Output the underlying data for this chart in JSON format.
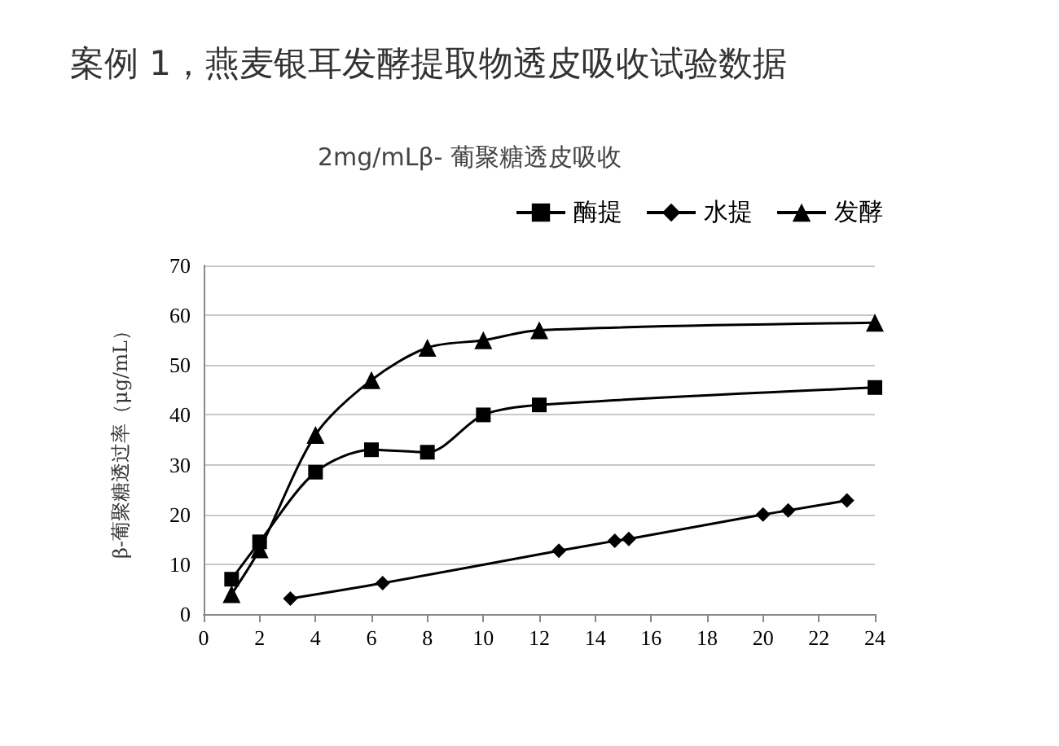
{
  "chart_data": {
    "type": "line",
    "title": "案例 1，燕麦银耳发酵提取物透皮吸收试验数据",
    "subtitle": "2mg/mLβ- 葡聚糖透皮吸收",
    "ylabel": "β-葡聚糖透过率（μg/mL）",
    "xlim": [
      0,
      24
    ],
    "xticks": [
      0,
      2,
      4,
      6,
      8,
      10,
      12,
      14,
      16,
      18,
      20,
      22,
      24
    ],
    "ylim": [
      0,
      70
    ],
    "yticks": [
      0,
      10,
      20,
      30,
      40,
      50,
      60,
      70
    ],
    "grid": "y",
    "legend": "top right",
    "line_style": "solid",
    "series": [
      {
        "name": "酶提",
        "color": "#000000",
        "marker": "square",
        "x": [
          1,
          2,
          4,
          6,
          8,
          10,
          12,
          24
        ],
        "values": [
          7,
          14.5,
          28.5,
          33,
          32.5,
          40,
          42,
          45.5
        ]
      },
      {
        "name": "水提",
        "color": "#000000",
        "marker": "diamond",
        "x": [
          3.1,
          6.4,
          12.7,
          14.7,
          15.2,
          20,
          20.9,
          23
        ],
        "values": [
          3.1,
          6.2,
          12.7,
          14.7,
          15.1,
          20,
          20.8,
          22.8
        ]
      },
      {
        "name": "发酵",
        "color": "#000000",
        "marker": "triangle",
        "x": [
          1,
          2,
          4,
          6,
          8,
          10,
          12,
          24
        ],
        "values": [
          4,
          13,
          36,
          47,
          53.5,
          55,
          57,
          58.5
        ]
      }
    ]
  }
}
